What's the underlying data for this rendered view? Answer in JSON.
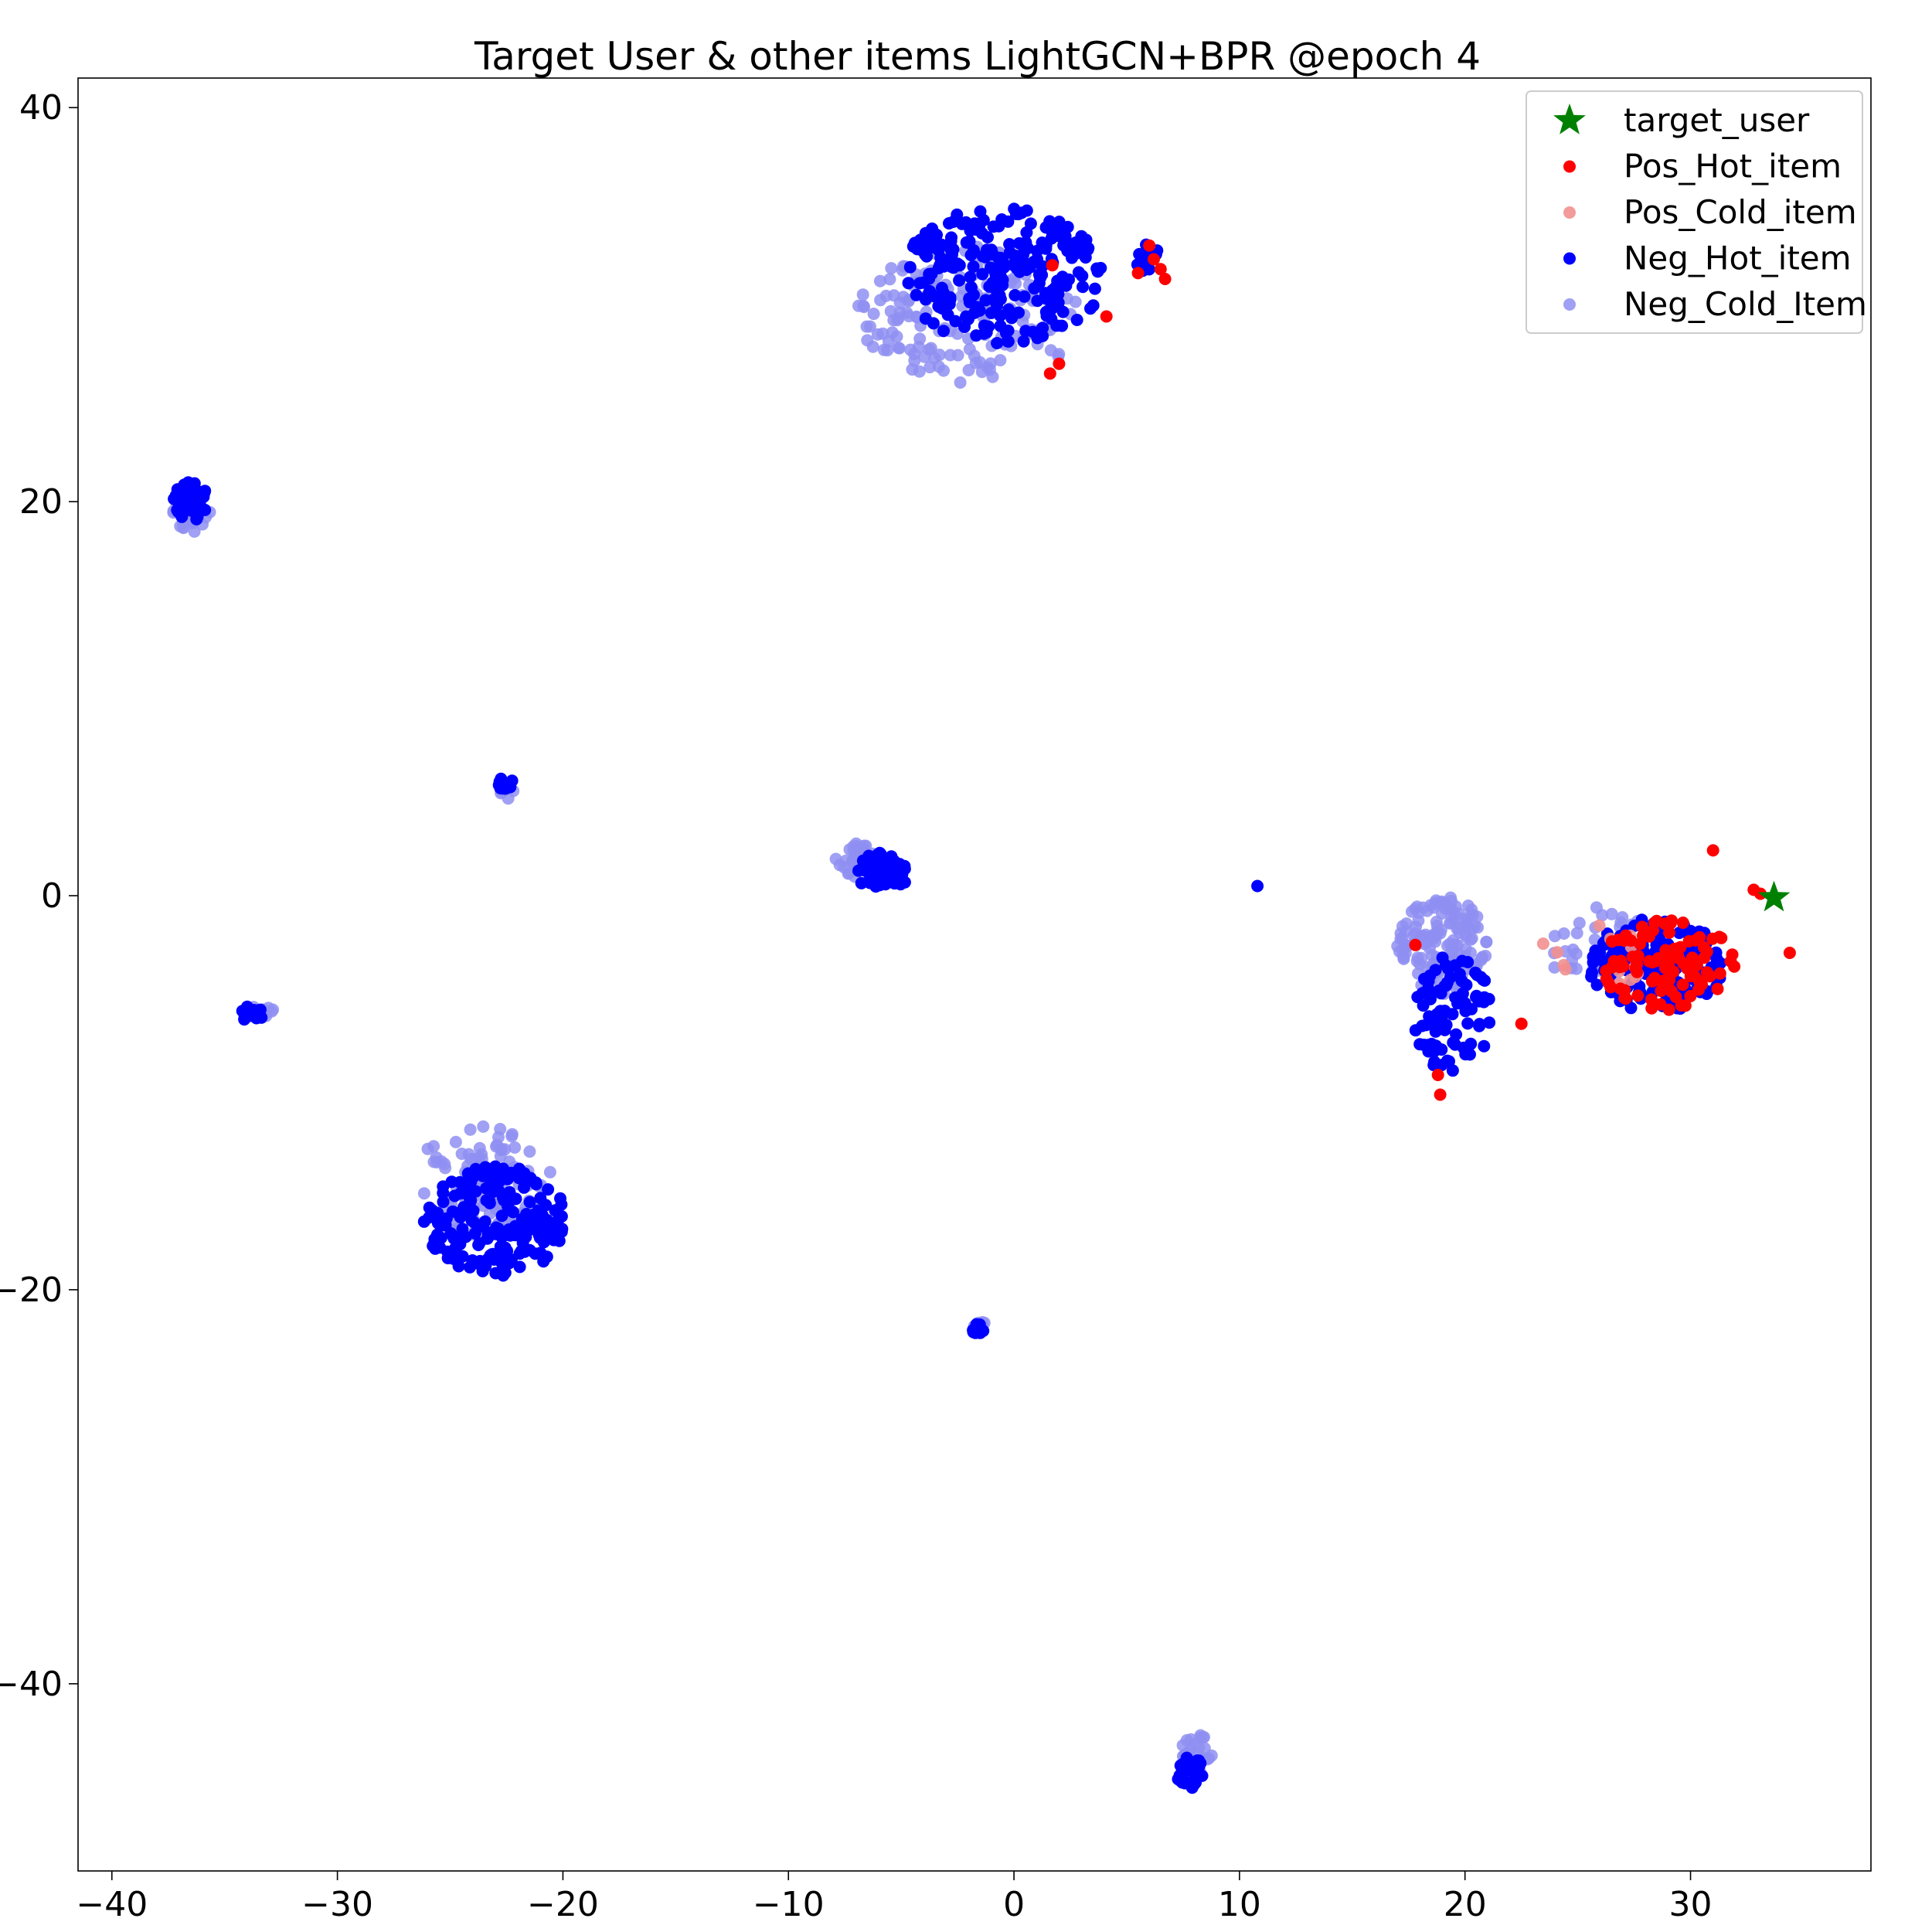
{
  "chart_data": {
    "type": "scatter",
    "title": "Target User & other items LightGCN+BPR @epoch 4",
    "xlabel": "",
    "ylabel": "",
    "xlim": [
      -41.5,
      38
    ],
    "ylim": [
      -49.5,
      41.5
    ],
    "x_ticks": [
      -40,
      -30,
      -20,
      -10,
      0,
      10,
      20,
      30
    ],
    "x_tick_labels": [
      "−40",
      "−30",
      "−20",
      "−10",
      "0",
      "10",
      "20",
      "30"
    ],
    "y_ticks": [
      40,
      20,
      0,
      -20,
      -40
    ],
    "y_tick_labels": [
      "40",
      "20",
      "0",
      "−20",
      "−40"
    ],
    "grid": false,
    "legend_position": "top-right",
    "colors": {
      "target_user": "#008000",
      "pos_hot": "#ff0000",
      "pos_cold": "#f28f8f",
      "neg_hot": "#0000ff",
      "neg_cold": "#8f8ff2"
    },
    "clusters": [
      {
        "series": "Neg_Hot_item",
        "center": [
          -0.5,
          31.5
        ],
        "spread": [
          4.5,
          3.5
        ],
        "count": 260,
        "seed": 11
      },
      {
        "series": "Neg_Cold_Item",
        "center": [
          -2.0,
          29.5
        ],
        "spread": [
          5.0,
          3.5
        ],
        "count": 170,
        "seed": 12
      },
      {
        "series": "Neg_Hot_item",
        "center": [
          6.0,
          32.3
        ],
        "spread": [
          0.6,
          0.8
        ],
        "count": 16,
        "seed": 13
      },
      {
        "series": "Neg_Hot_item",
        "center": [
          -36.5,
          20.0
        ],
        "spread": [
          0.8,
          1.0
        ],
        "count": 45,
        "seed": 21
      },
      {
        "series": "Neg_Cold_Item",
        "center": [
          -36.5,
          19.2
        ],
        "spread": [
          1.0,
          0.9
        ],
        "count": 30,
        "seed": 22
      },
      {
        "series": "Neg_Hot_item",
        "center": [
          -22.6,
          5.7
        ],
        "spread": [
          0.4,
          0.3
        ],
        "count": 12,
        "seed": 31
      },
      {
        "series": "Neg_Cold_Item",
        "center": [
          -22.5,
          5.3
        ],
        "spread": [
          0.4,
          0.4
        ],
        "count": 8,
        "seed": 32
      },
      {
        "series": "Neg_Hot_item",
        "center": [
          -5.8,
          1.2
        ],
        "spread": [
          1.2,
          1.0
        ],
        "count": 60,
        "seed": 41
      },
      {
        "series": "Neg_Cold_Item",
        "center": [
          -7.0,
          1.8
        ],
        "spread": [
          1.0,
          0.9
        ],
        "count": 30,
        "seed": 42
      },
      {
        "series": "Neg_Hot_item",
        "center": [
          -33.8,
          -6.0
        ],
        "spread": [
          0.5,
          0.4
        ],
        "count": 18,
        "seed": 51
      },
      {
        "series": "Neg_Cold_Item",
        "center": [
          -33.3,
          -5.8
        ],
        "spread": [
          0.5,
          0.4
        ],
        "count": 8,
        "seed": 52
      },
      {
        "series": "Neg_Hot_item",
        "center": [
          -23.0,
          -16.5
        ],
        "spread": [
          3.2,
          2.8
        ],
        "count": 200,
        "seed": 61
      },
      {
        "series": "Neg_Cold_Item",
        "center": [
          -23.5,
          -14.5
        ],
        "spread": [
          3.2,
          2.8
        ],
        "count": 110,
        "seed": 62
      },
      {
        "series": "Neg_Hot_item",
        "center": [
          -1.6,
          -22.0
        ],
        "spread": [
          0.3,
          0.3
        ],
        "count": 14,
        "seed": 71
      },
      {
        "series": "Neg_Cold_Item",
        "center": [
          -1.6,
          -21.8
        ],
        "spread": [
          0.4,
          0.3
        ],
        "count": 8,
        "seed": 72
      },
      {
        "series": "Neg_Hot_item",
        "center": [
          7.8,
          -44.5
        ],
        "spread": [
          0.6,
          0.8
        ],
        "count": 30,
        "seed": 81
      },
      {
        "series": "Neg_Cold_Item",
        "center": [
          8.2,
          -43.5
        ],
        "spread": [
          0.8,
          1.0
        ],
        "count": 24,
        "seed": 82
      },
      {
        "series": "Neg_Hot_item",
        "center": [
          10.8,
          0.5
        ],
        "spread": [
          0.05,
          0.05
        ],
        "count": 1,
        "seed": 91
      },
      {
        "series": "Neg_Hot_item",
        "center": [
          19.5,
          -6.0
        ],
        "spread": [
          1.8,
          3.0
        ],
        "count": 90,
        "seed": 101
      },
      {
        "series": "Neg_Cold_Item",
        "center": [
          19.0,
          -2.5
        ],
        "spread": [
          2.0,
          2.5
        ],
        "count": 150,
        "seed": 102
      },
      {
        "series": "Neg_Hot_item",
        "center": [
          28.5,
          -3.5
        ],
        "spread": [
          3.0,
          2.4
        ],
        "count": 170,
        "seed": 103
      },
      {
        "series": "Pos_Hot_item",
        "center": [
          29.0,
          -3.5
        ],
        "spread": [
          3.0,
          2.3
        ],
        "count": 100,
        "seed": 104
      },
      {
        "series": "Pos_Cold_item",
        "center": [
          25.5,
          -3.0
        ],
        "spread": [
          2.5,
          2.0
        ],
        "count": 15,
        "seed": 105
      },
      {
        "series": "Neg_Cold_Item",
        "center": [
          26.0,
          -2.5
        ],
        "spread": [
          2.5,
          2.0
        ],
        "count": 30,
        "seed": 106
      }
    ],
    "extra_points": [
      {
        "series": "Pos_Hot_item",
        "x": 1.7,
        "y": 32.0
      },
      {
        "series": "Pos_Hot_item",
        "x": 4.1,
        "y": 29.4
      },
      {
        "series": "Pos_Hot_item",
        "x": 2.0,
        "y": 27.0
      },
      {
        "series": "Pos_Hot_item",
        "x": 1.6,
        "y": 26.5
      },
      {
        "series": "Pos_Hot_item",
        "x": 6.0,
        "y": 33.0
      },
      {
        "series": "Pos_Hot_item",
        "x": 6.2,
        "y": 32.3
      },
      {
        "series": "Pos_Hot_item",
        "x": 6.5,
        "y": 31.8
      },
      {
        "series": "Pos_Hot_item",
        "x": 5.5,
        "y": 31.6
      },
      {
        "series": "Pos_Hot_item",
        "x": 6.7,
        "y": 31.3
      },
      {
        "series": "Pos_Hot_item",
        "x": 18.8,
        "y": -9.1
      },
      {
        "series": "Pos_Hot_item",
        "x": 18.9,
        "y": -10.1
      },
      {
        "series": "Pos_Hot_item",
        "x": 17.8,
        "y": -2.5
      },
      {
        "series": "Pos_Hot_item",
        "x": 34.4,
        "y": -2.9
      },
      {
        "series": "Pos_Hot_item",
        "x": 32.8,
        "y": 0.3
      },
      {
        "series": "Pos_Hot_item",
        "x": 33.1,
        "y": 0.1
      },
      {
        "series": "Pos_Hot_item",
        "x": 31.0,
        "y": 2.3
      },
      {
        "series": "Pos_Hot_item",
        "x": 22.5,
        "y": -6.5
      }
    ],
    "series": [
      {
        "name": "target_user",
        "marker": "star",
        "points": [
          [
            33.7,
            -0.1
          ]
        ]
      },
      {
        "name": "Pos_Hot_item",
        "marker": "circle"
      },
      {
        "name": "Pos_Cold_item",
        "marker": "circle"
      },
      {
        "name": "Neg_Hot_item",
        "marker": "circle"
      },
      {
        "name": "Neg_Cold_Item",
        "marker": "circle"
      }
    ]
  }
}
